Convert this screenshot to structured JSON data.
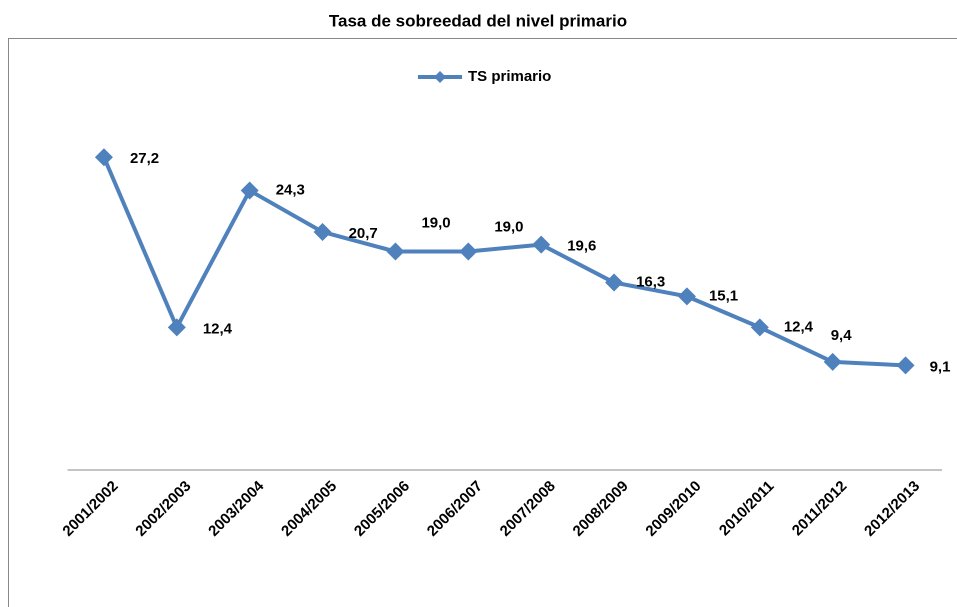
{
  "chart_data": {
    "type": "line",
    "title": "Tasa de sobreedad del nivel primario",
    "categories": [
      "2001/2002",
      "2002/2003",
      "2003/2004",
      "2004/2005",
      "2005/2006",
      "2006/2007",
      "2007/2008",
      "2008/2009",
      "2009/2010",
      "2010/2011",
      "2011/2012",
      "2012/2013"
    ],
    "series": [
      {
        "name": "TS primario",
        "color": "#4f81bd",
        "values": [
          27.2,
          12.4,
          24.3,
          20.7,
          19.0,
          19.0,
          19.6,
          16.3,
          15.1,
          12.4,
          9.4,
          9.1
        ],
        "value_labels": [
          "27,2",
          "12,4",
          "24,3",
          "20,7",
          "19,0",
          "19,0",
          "19,6",
          "16,3",
          "15,1",
          "12,4",
          "9,4",
          "9,1"
        ]
      }
    ],
    "ylim": [
      0,
      35
    ],
    "legend": "top"
  }
}
